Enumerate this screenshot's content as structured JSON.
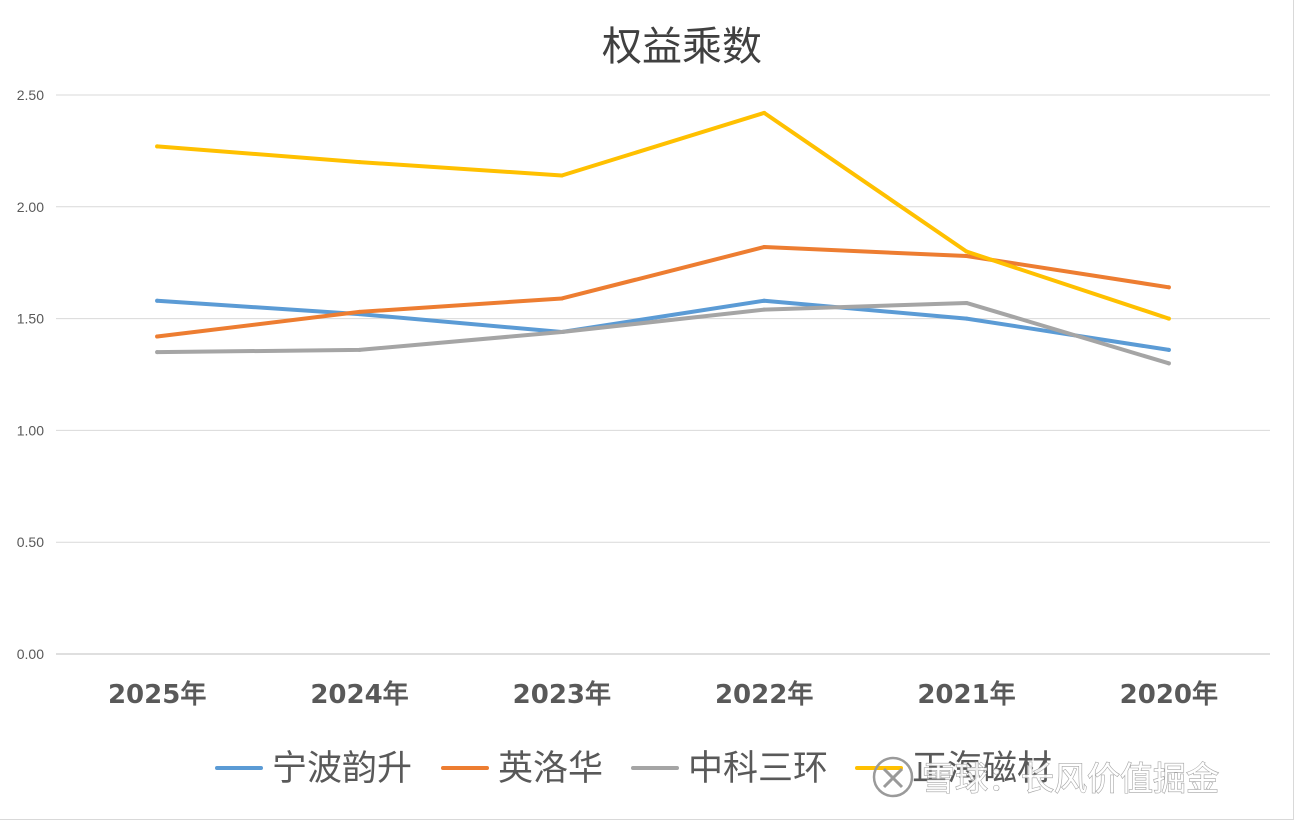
{
  "chart_data": {
    "type": "line",
    "title": "权益乘数",
    "xlabel": "",
    "ylabel": "",
    "categories": [
      "2025年",
      "2024年",
      "2023年",
      "2022年",
      "2021年",
      "2020年"
    ],
    "ylim": [
      0,
      2.5
    ],
    "yticks": [
      "0.00",
      "0.50",
      "1.00",
      "1.50",
      "2.00",
      "2.50"
    ],
    "ytick_values": [
      0,
      0.5,
      1.0,
      1.5,
      2.0,
      2.5
    ],
    "grid": true,
    "legend_position": "bottom",
    "series": [
      {
        "name": "宁波韵升",
        "color": "#5b9bd5",
        "values": [
          1.58,
          1.52,
          1.44,
          1.58,
          1.5,
          1.36
        ]
      },
      {
        "name": "英洛华",
        "color": "#ed7d31",
        "values": [
          1.42,
          1.53,
          1.59,
          1.82,
          1.78,
          1.64
        ]
      },
      {
        "name": "中科三环",
        "color": "#a5a5a5",
        "values": [
          1.35,
          1.36,
          1.44,
          1.54,
          1.57,
          1.3
        ]
      },
      {
        "name": "正海磁材",
        "color": "#ffc000",
        "values": [
          2.27,
          2.2,
          2.14,
          2.42,
          1.8,
          1.5
        ]
      }
    ]
  },
  "watermark": {
    "text": "雪球：长风价值掘金"
  }
}
